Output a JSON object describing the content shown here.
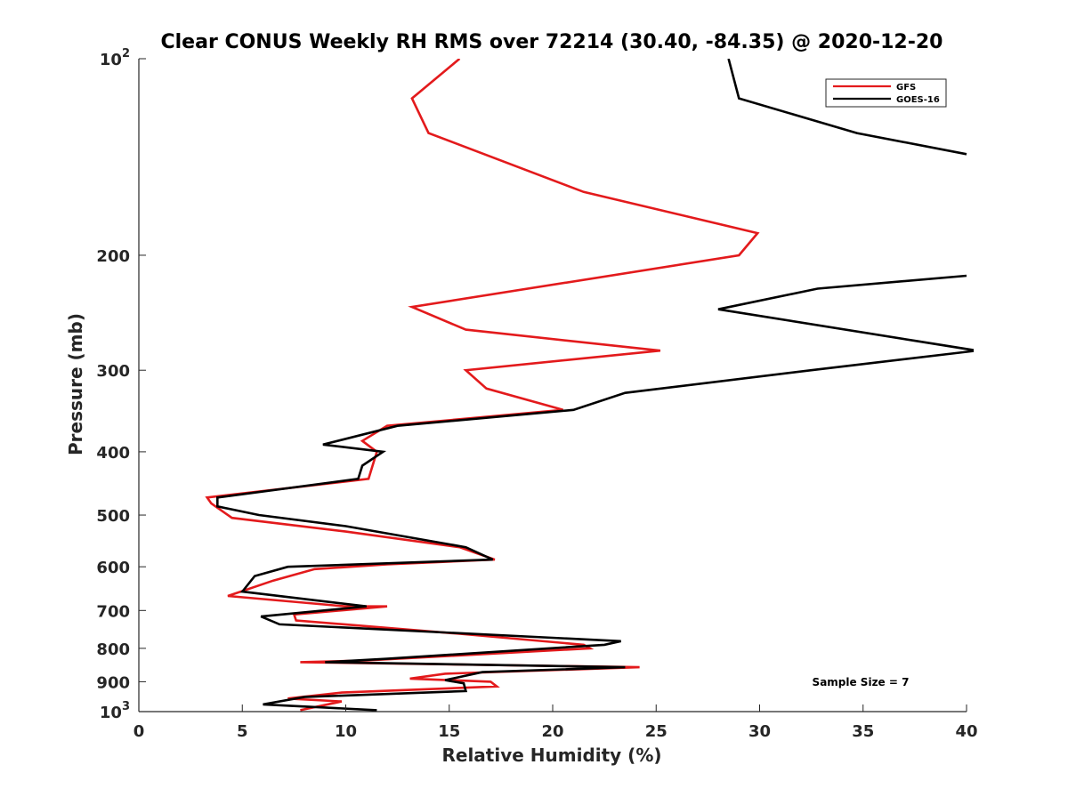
{
  "chart_data": {
    "type": "line",
    "title": "Clear CONUS Weekly RH RMS over 72214 (30.40, -84.35) @ 2020-12-20",
    "xlabel": "Relative Humidity (%)",
    "ylabel": "Pressure (mb)",
    "xlim": [
      0,
      40
    ],
    "ylim": [
      100,
      1000
    ],
    "yscale": "log",
    "y_reversed": true,
    "x_ticks": [
      "0",
      "5",
      "10",
      "15",
      "20",
      "25",
      "30",
      "35",
      "40"
    ],
    "x_tick_values": [
      0,
      5,
      10,
      15,
      20,
      25,
      30,
      35,
      40
    ],
    "y_ticks": [
      {
        "value": 100,
        "base": "10",
        "exp": "2"
      },
      {
        "value": 200,
        "label": "200"
      },
      {
        "value": 300,
        "label": "300"
      },
      {
        "value": 400,
        "label": "400"
      },
      {
        "value": 500,
        "label": "500"
      },
      {
        "value": 600,
        "label": "600"
      },
      {
        "value": 700,
        "label": "700"
      },
      {
        "value": 800,
        "label": "800"
      },
      {
        "value": 900,
        "label": "900"
      },
      {
        "value": 1000,
        "base": "10",
        "exp": "3"
      }
    ],
    "legend_position": "top-right",
    "annotation": "Sample Size = 7",
    "series": [
      {
        "name": "GFS",
        "color": "#e31a1c",
        "points": [
          [
            15.5,
            100
          ],
          [
            13.2,
            115
          ],
          [
            14,
            130
          ],
          [
            21.5,
            160
          ],
          [
            29.9,
            185
          ],
          [
            29,
            200
          ],
          [
            13.2,
            240
          ],
          [
            15.8,
            260
          ],
          [
            25.2,
            280
          ],
          [
            15.8,
            300
          ],
          [
            16.8,
            320
          ],
          [
            20.5,
            345
          ],
          [
            12,
            365
          ],
          [
            10.8,
            385
          ],
          [
            11.5,
            400
          ],
          [
            11.1,
            440
          ],
          [
            3.3,
            470
          ],
          [
            3.5,
            480
          ],
          [
            4.5,
            505
          ],
          [
            10,
            530
          ],
          [
            15.5,
            560
          ],
          [
            17.2,
            585
          ],
          [
            12,
            595
          ],
          [
            8.5,
            605
          ],
          [
            6.5,
            630
          ],
          [
            4.3,
            665
          ],
          [
            10,
            690
          ],
          [
            12,
            690
          ],
          [
            7.5,
            710
          ],
          [
            7.6,
            725
          ],
          [
            15.5,
            760
          ],
          [
            21.5,
            790
          ],
          [
            21.8,
            800
          ],
          [
            11,
            835
          ],
          [
            7.8,
            840
          ],
          [
            24.2,
            855
          ],
          [
            14.8,
            875
          ],
          [
            13.1,
            890
          ],
          [
            17,
            900
          ],
          [
            17.3,
            915
          ],
          [
            9.8,
            935
          ],
          [
            7.2,
            955
          ],
          [
            9.8,
            965
          ],
          [
            7.8,
            995
          ]
        ]
      },
      {
        "name": "GOES-16",
        "color": "#000000",
        "points": [
          [
            28.5,
            100
          ],
          [
            29,
            115
          ],
          [
            34.7,
            130
          ],
          [
            40,
            140
          ],
          [
            null,
            160
          ],
          [
            40,
            215
          ],
          [
            32.8,
            225
          ],
          [
            28,
            242
          ],
          [
            40.5,
            280
          ],
          [
            32.5,
            300
          ],
          [
            23.5,
            325
          ],
          [
            21,
            345
          ],
          [
            12.5,
            365
          ],
          [
            8.9,
            390
          ],
          [
            11.8,
            400
          ],
          [
            10.8,
            420
          ],
          [
            10.6,
            440
          ],
          [
            3.8,
            470
          ],
          [
            3.8,
            485
          ],
          [
            5.8,
            500
          ],
          [
            10,
            520
          ],
          [
            15.8,
            560
          ],
          [
            17.1,
            585
          ],
          [
            7.2,
            600
          ],
          [
            5.6,
            620
          ],
          [
            5,
            655
          ],
          [
            11,
            690
          ],
          [
            5.9,
            715
          ],
          [
            6.8,
            735
          ],
          [
            23.3,
            780
          ],
          [
            22.5,
            790
          ],
          [
            12,
            830
          ],
          [
            9,
            840
          ],
          [
            23.5,
            855
          ],
          [
            16.6,
            870
          ],
          [
            14.8,
            895
          ],
          [
            15.7,
            905
          ],
          [
            15.8,
            930
          ],
          [
            8,
            950
          ],
          [
            6,
            975
          ],
          [
            11.5,
            995
          ]
        ]
      }
    ]
  }
}
